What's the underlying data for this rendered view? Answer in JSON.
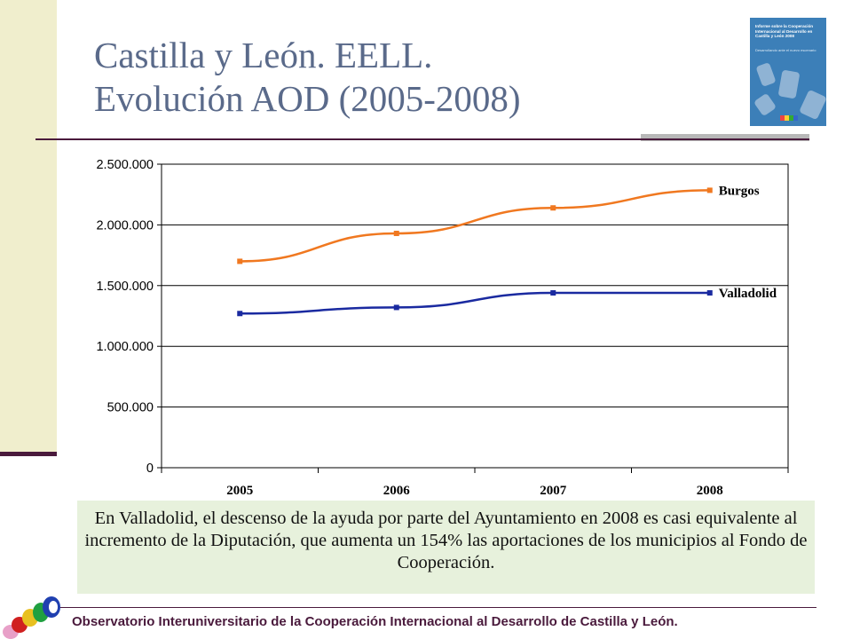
{
  "title": {
    "line1": "Castilla y León. EELL.",
    "line2": "Evolución  AOD (2005-2008)"
  },
  "cover": {
    "text": "Informe sobre la Cooperación Internacional al Desarrollo en Castilla y León 2008",
    "subtitle": "Desarrollando ante el nuevo escenario"
  },
  "note": "En Valladolid, el descenso de la ayuda por parte del Ayuntamiento en 2008 es casi equivalente al incremento de la Diputación, que aumenta un 154% las aportaciones de los municipios al Fondo de Cooperación.",
  "footer": "Observatorio Interuniversitario de la Cooperación Internacional al Desarrollo de Castilla y León.",
  "chart_data": {
    "type": "line",
    "categories": [
      "2005",
      "2006",
      "2007",
      "2008"
    ],
    "series": [
      {
        "name": "Burgos",
        "values": [
          1700000,
          1930000,
          2140000,
          2285000
        ],
        "color": "#f07820"
      },
      {
        "name": "Valladolid",
        "values": [
          1270000,
          1320000,
          1440000,
          1440000
        ],
        "color": "#1a2aa0"
      }
    ],
    "yticks": [
      "0",
      "500.000",
      "1.000.000",
      "1.500.000",
      "2.000.000",
      "2.500.000"
    ],
    "ylim": [
      0,
      2500000
    ],
    "grid": true,
    "legend": "inline-right"
  }
}
